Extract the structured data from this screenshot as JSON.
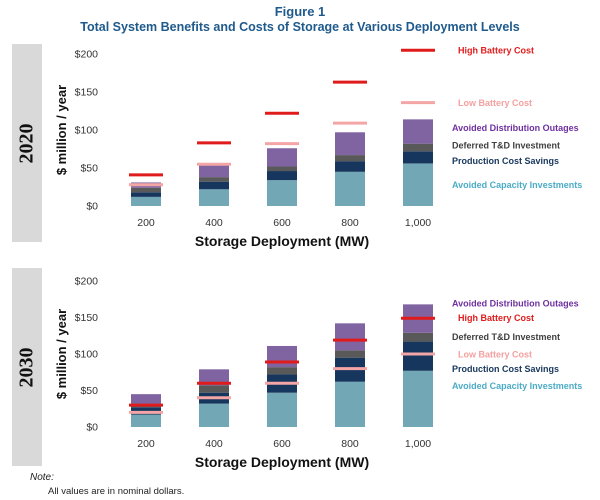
{
  "figure": {
    "title": "Figure 1",
    "subtitle": "Total System Benefits and Costs of Storage at Various Deployment Levels"
  },
  "note": {
    "label": "Note:",
    "text": "All values are in nominal dollars."
  },
  "colors": {
    "avoided_capacity": "#72a8b5",
    "production_cost": "#17365d",
    "deferred_td": "#595959",
    "avoided_distribution": "#8064a2",
    "high_battery": "#e01b1b",
    "low_battery": "#f4a6a6",
    "legend_avoided_distribution": "#7030a0",
    "legend_deferred_td": "#404040",
    "legend_production_cost": "#17365d",
    "legend_avoided_capacity": "#4bacc6",
    "legend_high_battery": "#e01b1b",
    "legend_low_battery": "#f4a0a0"
  },
  "chart_data": [
    {
      "type": "bar",
      "stacked": true,
      "panel_label": "2020",
      "ylabel": "$ million / year",
      "xlabel": "Storage Deployment (MW)",
      "ylim": [
        0,
        200
      ],
      "y_ticks": [
        "$0",
        "$50",
        "$100",
        "$150",
        "$200"
      ],
      "categories": [
        "200",
        "400",
        "600",
        "800",
        "1,000"
      ],
      "series": [
        {
          "name": "Avoided Capacity Investments",
          "values": [
            12,
            22,
            34,
            45,
            56
          ]
        },
        {
          "name": "Production Cost Savings",
          "values": [
            6,
            10,
            12,
            14,
            16
          ]
        },
        {
          "name": "Deferred T&D Investment",
          "values": [
            6,
            6,
            6,
            8,
            10
          ]
        },
        {
          "name": "Avoided Distribution Outages",
          "values": [
            7,
            16,
            24,
            30,
            32
          ]
        }
      ],
      "lines": [
        {
          "name": "High Battery Cost",
          "values": [
            41,
            83,
            122,
            163,
            205
          ]
        },
        {
          "name": "Low Battery Cost",
          "values": [
            28,
            55,
            82,
            109,
            136
          ]
        }
      ],
      "legend": [
        {
          "text": "High Battery Cost",
          "value": 205
        },
        {
          "text": "Low Battery Cost",
          "value": 136
        },
        {
          "text": "Avoided Distribution Outages",
          "value": 103
        },
        {
          "text": "Deferred T&D Investment",
          "value": 80
        },
        {
          "text": "Production Cost Savings",
          "value": 60
        },
        {
          "text": "Avoided Capacity Investments",
          "value": 28
        }
      ]
    },
    {
      "type": "bar",
      "stacked": true,
      "panel_label": "2030",
      "ylabel": "$ million / year",
      "xlabel": "Storage Deployment (MW)",
      "ylim": [
        0,
        200
      ],
      "y_ticks": [
        "$0",
        "$50",
        "$100",
        "$150",
        "$200"
      ],
      "categories": [
        "200",
        "400",
        "600",
        "800",
        "1,000"
      ],
      "series": [
        {
          "name": "Avoided Capacity Investments",
          "values": [
            17,
            32,
            47,
            62,
            77
          ]
        },
        {
          "name": "Production Cost Savings",
          "values": [
            10,
            15,
            25,
            33,
            40
          ]
        },
        {
          "name": "Deferred T&D Investment",
          "values": [
            5,
            10,
            10,
            10,
            12
          ]
        },
        {
          "name": "Avoided Distribution Outages",
          "values": [
            13,
            22,
            29,
            37,
            39
          ]
        }
      ],
      "lines": [
        {
          "name": "High Battery Cost",
          "values": [
            30,
            60,
            89,
            119,
            149
          ]
        },
        {
          "name": "Low Battery Cost",
          "values": [
            20,
            40,
            60,
            80,
            100
          ]
        }
      ],
      "legend": [
        {
          "text": "Avoided Distribution Outages",
          "value": 170
        },
        {
          "text": "High Battery Cost",
          "value": 150
        },
        {
          "text": "Deferred T&D Investment",
          "value": 124
        },
        {
          "text": "Low Battery Cost",
          "value": 100
        },
        {
          "text": "Production Cost Savings",
          "value": 80
        },
        {
          "text": "Avoided Capacity Investments",
          "value": 57
        }
      ]
    }
  ]
}
